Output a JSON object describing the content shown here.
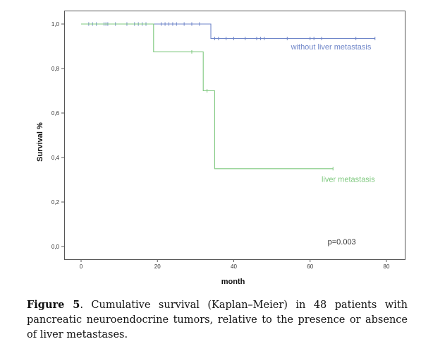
{
  "chart_data": {
    "type": "line",
    "subtype": "kaplan-meier step",
    "xlabel": "month",
    "ylabel": "Survival %",
    "xlim": [
      0,
      80
    ],
    "ylim": [
      0.0,
      1.0
    ],
    "xticks": [
      0,
      20,
      40,
      60,
      80
    ],
    "yticks": [
      {
        "v": 0.0,
        "label": "0,0"
      },
      {
        "v": 0.2,
        "label": "0,2"
      },
      {
        "v": 0.4,
        "label": "0,4"
      },
      {
        "v": 0.6,
        "label": "0,6"
      },
      {
        "v": 0.8,
        "label": "0,8"
      },
      {
        "v": 1.0,
        "label": "1,0"
      }
    ],
    "grid": false,
    "series": [
      {
        "name": "without liver metastasis",
        "color": "#6f86c9",
        "steps": [
          [
            0,
            1.0
          ],
          [
            34,
            1.0
          ],
          [
            34,
            0.935
          ],
          [
            77,
            0.935
          ]
        ],
        "censored": [
          [
            2,
            1.0
          ],
          [
            3,
            1.0
          ],
          [
            4,
            1.0
          ],
          [
            6,
            1.0
          ],
          [
            6.5,
            1.0
          ],
          [
            7,
            1.0
          ],
          [
            9,
            1.0
          ],
          [
            12,
            1.0
          ],
          [
            14,
            1.0
          ],
          [
            15,
            1.0
          ],
          [
            16,
            1.0
          ],
          [
            17,
            1.0
          ],
          [
            21,
            1.0
          ],
          [
            22,
            1.0
          ],
          [
            23,
            1.0
          ],
          [
            24,
            1.0
          ],
          [
            25,
            1.0
          ],
          [
            27,
            1.0
          ],
          [
            29,
            1.0
          ],
          [
            31,
            1.0
          ],
          [
            35,
            0.935
          ],
          [
            36,
            0.935
          ],
          [
            38,
            0.935
          ],
          [
            40,
            0.935
          ],
          [
            43,
            0.935
          ],
          [
            46,
            0.935
          ],
          [
            47,
            0.935
          ],
          [
            48,
            0.935
          ],
          [
            54,
            0.935
          ],
          [
            60,
            0.935
          ],
          [
            61,
            0.935
          ],
          [
            63,
            0.935
          ],
          [
            72,
            0.935
          ],
          [
            77,
            0.935
          ]
        ]
      },
      {
        "name": "liver metastasis",
        "color": "#7ec87e",
        "steps": [
          [
            0,
            1.0
          ],
          [
            19,
            1.0
          ],
          [
            19,
            0.875
          ],
          [
            32,
            0.875
          ],
          [
            32,
            0.7
          ],
          [
            35,
            0.7
          ],
          [
            35,
            0.35
          ],
          [
            66,
            0.35
          ]
        ],
        "censored": [
          [
            29,
            0.875
          ],
          [
            33,
            0.7
          ],
          [
            66,
            0.35
          ]
        ]
      }
    ],
    "annotations": [
      {
        "text": "without liver metastasis",
        "x": 76,
        "y": 0.885,
        "anchor": "end",
        "color": "#6f86c9"
      },
      {
        "text": "liver metastasis",
        "x": 77,
        "y": 0.29,
        "anchor": "end",
        "color": "#7ec87e"
      },
      {
        "text": "p=0.003",
        "x": 72,
        "y": 0.01,
        "anchor": "end",
        "color": "#333333"
      }
    ]
  },
  "caption": {
    "label": "Figure 5",
    "text": ". Cumulative survival (Kaplan–Meier) in 48 patients with pancreatic neuroendocrine tumors, relative to the presence or absence of liver metastases."
  }
}
